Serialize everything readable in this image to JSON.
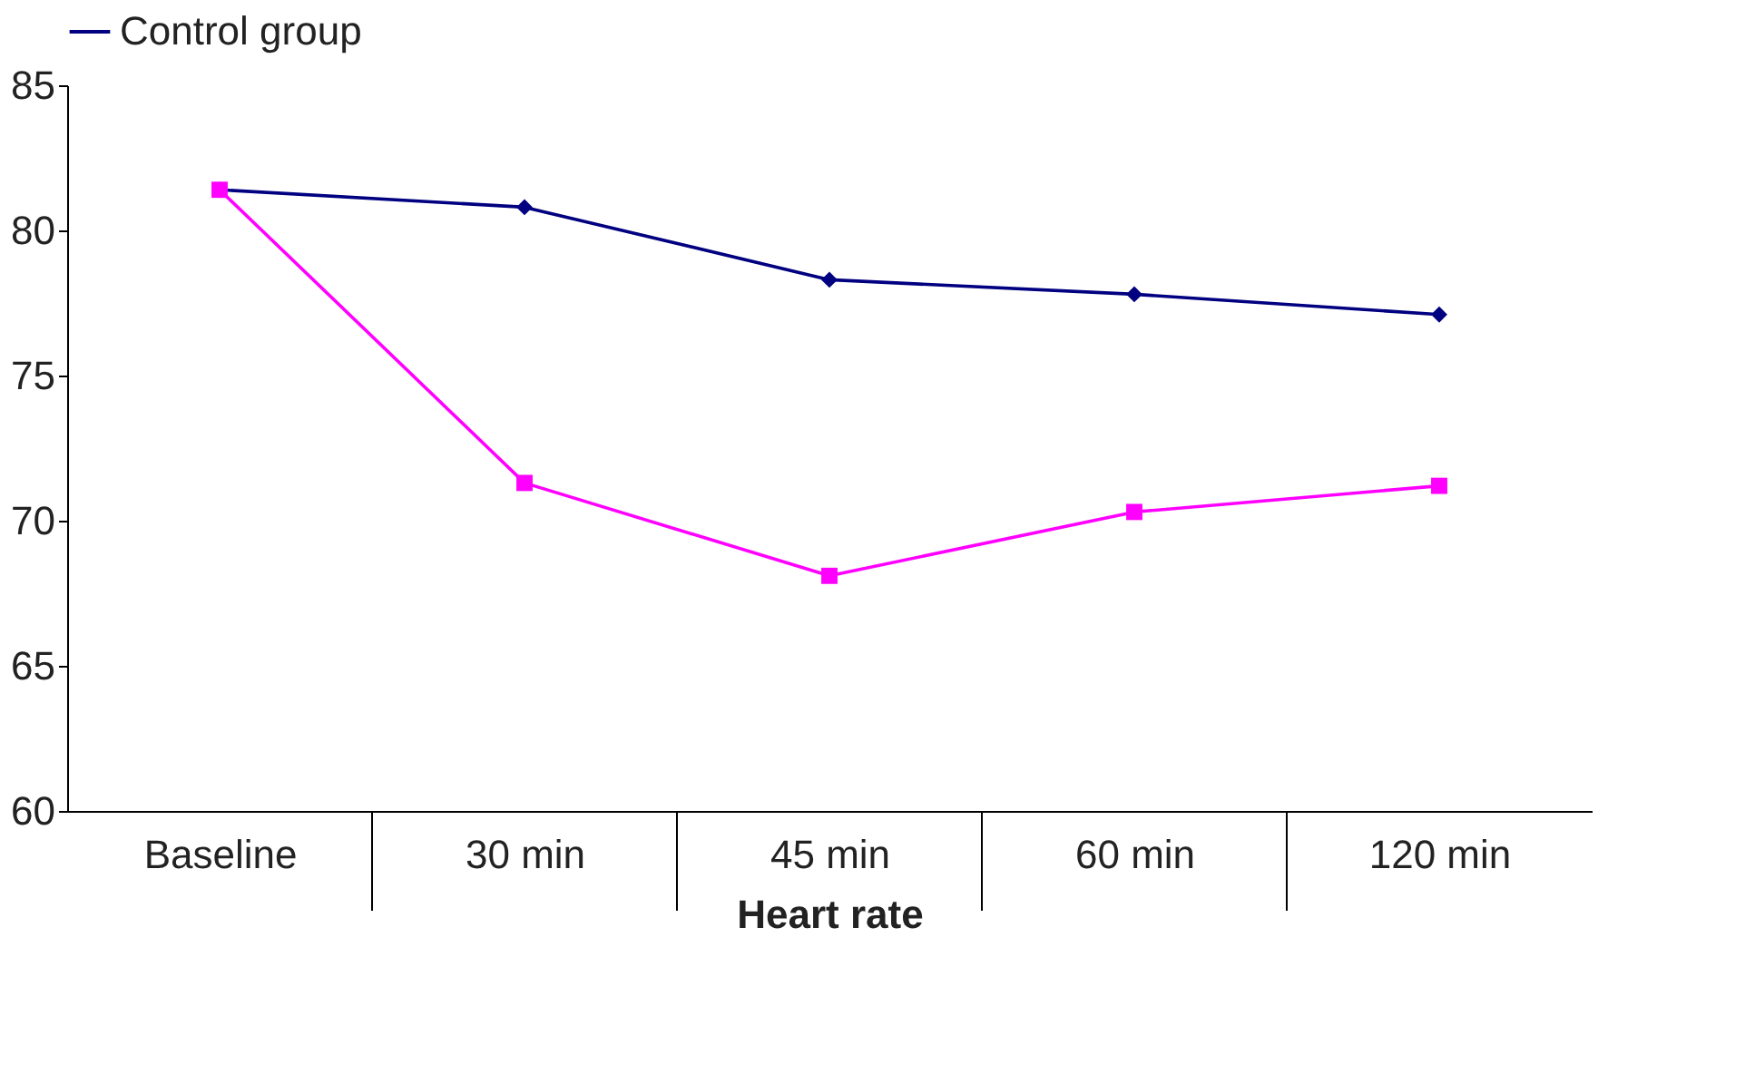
{
  "chart_data": {
    "type": "line",
    "xlabel": "Heart rate",
    "categories": [
      "Baseline",
      "30 min",
      "45 min",
      "60 min",
      "120 min"
    ],
    "series": [
      {
        "name": "Control group",
        "color": "#000080",
        "marker": "diamond",
        "values": [
          81.4,
          80.8,
          78.3,
          77.8,
          77.1
        ]
      },
      {
        "color": "#ff00ff",
        "marker": "square",
        "values": [
          81.4,
          71.3,
          68.1,
          70.3,
          71.2
        ]
      }
    ],
    "ylim": [
      60,
      85
    ],
    "yticks": [
      60,
      65,
      70,
      75,
      80,
      85
    ],
    "grid": false,
    "legend": "top"
  }
}
